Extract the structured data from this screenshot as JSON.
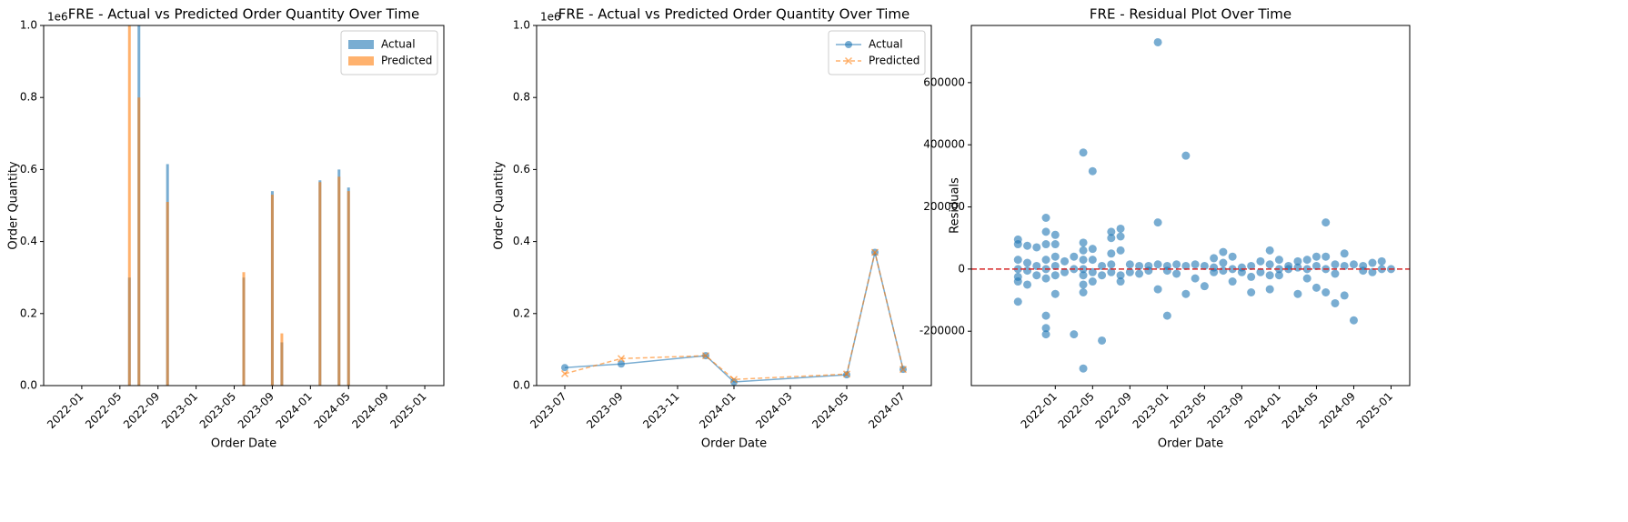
{
  "chart_data": [
    {
      "type": "bar",
      "title": "FRE - Actual vs Predicted Order Quantity Over Time",
      "x_label": "Order Date",
      "y_label": "Order Quantity",
      "y_offset_label": "1e6",
      "x": [
        "2022-06",
        "2022-07",
        "2022-10",
        "2023-06",
        "2023-09",
        "2023-10",
        "2024-02",
        "2024-04",
        "2024-05"
      ],
      "series": [
        {
          "name": "Actual",
          "color": "#1f77b4",
          "values": [
            300000,
            1000000,
            615000,
            300000,
            540000,
            120000,
            570000,
            600000,
            550000
          ]
        },
        {
          "name": "Predicted",
          "color": "#ff7f0e",
          "values": [
            1000000,
            800000,
            510000,
            315000,
            530000,
            145000,
            565000,
            580000,
            540000
          ]
        }
      ],
      "xlim": [
        "2021-09",
        "2025-03"
      ],
      "xticks": [
        "2022-01",
        "2022-05",
        "2022-09",
        "2023-01",
        "2023-05",
        "2023-09",
        "2024-01",
        "2024-05",
        "2024-09",
        "2025-01"
      ],
      "ylim": [
        0,
        1000000
      ],
      "yticks": [
        {
          "value": 0,
          "label": "0.0"
        },
        {
          "value": 200000,
          "label": "0.2"
        },
        {
          "value": 400000,
          "label": "0.4"
        },
        {
          "value": 600000,
          "label": "0.6"
        },
        {
          "value": 800000,
          "label": "0.8"
        },
        {
          "value": 1000000,
          "label": "1.0"
        }
      ],
      "legend": "upper right"
    },
    {
      "type": "line",
      "title": "FRE - Actual vs Predicted Order Quantity Over Time",
      "x_label": "Order Date",
      "y_label": "Order Quantity",
      "y_offset_label": "1e6",
      "x": [
        "2023-07",
        "2023-09",
        "2023-12",
        "2024-01",
        "2024-05",
        "2024-06",
        "2024-07"
      ],
      "series": [
        {
          "name": "Actual",
          "color": "#1f77b4",
          "values": [
            50000,
            60000,
            83000,
            10000,
            30000,
            370000,
            45000
          ]
        },
        {
          "name": "Predicted",
          "color": "#ff7f0e",
          "values": [
            33000,
            75000,
            83000,
            17000,
            32000,
            370000,
            45000
          ]
        }
      ],
      "xlim": [
        "2023-06",
        "2024-08"
      ],
      "xticks": [
        "2023-07",
        "2023-09",
        "2023-11",
        "2024-01",
        "2024-03",
        "2024-05",
        "2024-07"
      ],
      "ylim": [
        0,
        1000000
      ],
      "yticks": [
        {
          "value": 0,
          "label": "0.0"
        },
        {
          "value": 200000,
          "label": "0.2"
        },
        {
          "value": 400000,
          "label": "0.4"
        },
        {
          "value": 600000,
          "label": "0.6"
        },
        {
          "value": 800000,
          "label": "0.8"
        },
        {
          "value": 1000000,
          "label": "1.0"
        }
      ],
      "legend": "upper right"
    },
    {
      "type": "scatter",
      "title": "FRE - Residual Plot Over Time",
      "x_label": "Order Date",
      "y_label": "Residuals",
      "color": "#1f77b4",
      "x": [
        "2021-09",
        "2021-09",
        "2021-09",
        "2021-09",
        "2021-09",
        "2021-09",
        "2021-09",
        "2021-10",
        "2021-10",
        "2021-10",
        "2021-10",
        "2021-11",
        "2021-11",
        "2021-11",
        "2021-12",
        "2021-12",
        "2021-12",
        "2021-12",
        "2021-12",
        "2021-12",
        "2021-12",
        "2021-12",
        "2021-12",
        "2022-01",
        "2022-01",
        "2022-01",
        "2022-01",
        "2022-01",
        "2022-01",
        "2022-02",
        "2022-02",
        "2022-03",
        "2022-03",
        "2022-03",
        "2022-04",
        "2022-04",
        "2022-04",
        "2022-04",
        "2022-04",
        "2022-04",
        "2022-04",
        "2022-04",
        "2022-04",
        "2022-05",
        "2022-05",
        "2022-05",
        "2022-05",
        "2022-05",
        "2022-06",
        "2022-06",
        "2022-06",
        "2022-07",
        "2022-07",
        "2022-07",
        "2022-07",
        "2022-07",
        "2022-08",
        "2022-08",
        "2022-08",
        "2022-08",
        "2022-08",
        "2022-09",
        "2022-09",
        "2022-10",
        "2022-10",
        "2022-11",
        "2022-11",
        "2022-12",
        "2022-12",
        "2022-12",
        "2022-12",
        "2023-01",
        "2023-01",
        "2023-01",
        "2023-02",
        "2023-02",
        "2023-03",
        "2023-03",
        "2023-03",
        "2023-04",
        "2023-04",
        "2023-05",
        "2023-05",
        "2023-06",
        "2023-06",
        "2023-06",
        "2023-07",
        "2023-07",
        "2023-07",
        "2023-08",
        "2023-08",
        "2023-08",
        "2023-09",
        "2023-09",
        "2023-10",
        "2023-10",
        "2023-10",
        "2023-11",
        "2023-11",
        "2023-12",
        "2023-12",
        "2023-12",
        "2023-12",
        "2024-01",
        "2024-01",
        "2024-01",
        "2024-02",
        "2024-02",
        "2024-03",
        "2024-03",
        "2024-03",
        "2024-04",
        "2024-04",
        "2024-04",
        "2024-05",
        "2024-05",
        "2024-05",
        "2024-06",
        "2024-06",
        "2024-06",
        "2024-06",
        "2024-07",
        "2024-07",
        "2024-07",
        "2024-08",
        "2024-08",
        "2024-08",
        "2024-09",
        "2024-09",
        "2024-10",
        "2024-10",
        "2024-11",
        "2024-11",
        "2024-12",
        "2024-12",
        "2025-01"
      ],
      "values": [
        95000,
        80000,
        30000,
        0,
        -25000,
        -40000,
        -105000,
        75000,
        20000,
        -5000,
        -50000,
        70000,
        10000,
        -20000,
        165000,
        120000,
        80000,
        30000,
        0,
        -30000,
        -150000,
        -190000,
        -210000,
        110000,
        80000,
        40000,
        10000,
        -20000,
        -80000,
        25000,
        -10000,
        40000,
        0,
        -210000,
        85000,
        60000,
        30000,
        0,
        -20000,
        -50000,
        -75000,
        375000,
        -320000,
        65000,
        30000,
        -10000,
        -40000,
        315000,
        10000,
        -20000,
        -230000,
        120000,
        100000,
        50000,
        15000,
        -10000,
        130000,
        105000,
        60000,
        -20000,
        -40000,
        15000,
        -10000,
        10000,
        -15000,
        10000,
        -5000,
        730000,
        150000,
        15000,
        -65000,
        10000,
        -5000,
        -150000,
        15000,
        -15000,
        365000,
        10000,
        -80000,
        15000,
        -30000,
        10000,
        -55000,
        35000,
        5000,
        -10000,
        55000,
        20000,
        -5000,
        40000,
        0,
        -40000,
        5000,
        -10000,
        10000,
        -25000,
        -75000,
        25000,
        -10000,
        60000,
        15000,
        -20000,
        -65000,
        30000,
        0,
        -20000,
        10000,
        0,
        25000,
        5000,
        -80000,
        30000,
        0,
        -30000,
        40000,
        10000,
        -60000,
        150000,
        40000,
        0,
        -75000,
        15000,
        -15000,
        -110000,
        50000,
        10000,
        -85000,
        15000,
        -165000,
        10000,
        -5000,
        20000,
        -10000,
        25000,
        0,
        0
      ],
      "hline": 0,
      "hline_color": "#d62728",
      "xlim": [
        "2021-04",
        "2025-03"
      ],
      "xticks": [
        "2022-01",
        "2022-05",
        "2022-09",
        "2023-01",
        "2023-05",
        "2023-09",
        "2024-01",
        "2024-05",
        "2024-09",
        "2025-01"
      ],
      "ylim": [
        -375000,
        784000
      ],
      "yticks": [
        -200000,
        0,
        200000,
        400000,
        600000
      ]
    }
  ]
}
